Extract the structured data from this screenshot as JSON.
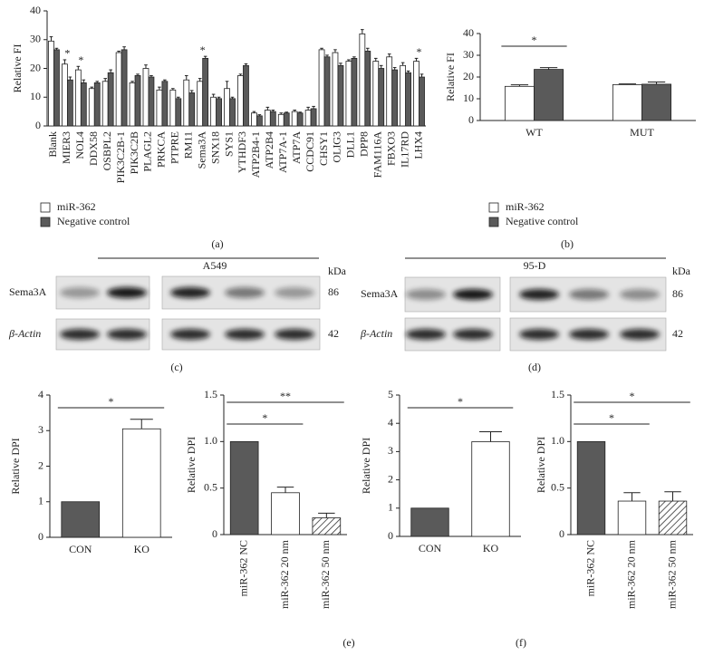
{
  "panel_labels": [
    "(a)",
    "(b)",
    "(c)",
    "(d)",
    "(e)",
    "(f)"
  ],
  "chart_data": [
    {
      "type": "bar",
      "y_label": "Relative FI",
      "categories": [
        "Blank",
        "MIER3",
        "NOL4",
        "DDX58",
        "OSBPL2",
        "PIK3C2B-1",
        "PIK3C2B",
        "PLAGL2",
        "PRKCA",
        "PTPRE",
        "RM11",
        "Sema3A",
        "SNX18",
        "SYS1",
        "YTHDF3",
        "ATP2B4-1",
        "ATP2B4",
        "ATP7A-1",
        "ATP7A",
        "CCDC91",
        "CHSY1",
        "OLIG3",
        "DLL1",
        "DPP8",
        "FAM116A",
        "FBXO3",
        "IL17RD",
        "LHX4"
      ],
      "series": [
        {
          "name": "miR-362",
          "color": "#ffffff",
          "values": [
            29.5,
            21.5,
            19.5,
            13,
            15.5,
            25.5,
            15,
            20,
            12.5,
            12.5,
            16,
            15.5,
            10,
            13,
            17.5,
            4.5,
            5.5,
            4,
            5,
            5.5,
            26.5,
            25.5,
            22.5,
            32,
            22.5,
            24,
            21,
            22.5
          ],
          "errors": [
            1.5,
            1.5,
            1.2,
            0.5,
            1,
            0.5,
            0.5,
            1.2,
            1,
            0.5,
            1.5,
            1,
            1,
            2.5,
            0.5,
            0.5,
            1,
            0.5,
            0.5,
            1,
            0.5,
            1,
            0.5,
            1.5,
            1,
            1,
            1,
            1
          ]
        },
        {
          "name": "Negative control",
          "color": "#5a5a5a",
          "values": [
            26.5,
            16,
            15,
            15,
            18.5,
            26.5,
            17.5,
            17,
            15.5,
            9.5,
            11.5,
            23.5,
            9.5,
            9.5,
            21,
            3.5,
            5,
            4.5,
            4.5,
            6,
            24,
            21,
            23.5,
            26,
            20,
            19.5,
            18.5,
            17
          ],
          "errors": [
            0.5,
            1,
            1,
            0.5,
            1,
            1,
            0.5,
            0.5,
            0.5,
            0.5,
            0.8,
            0.7,
            0.5,
            0.5,
            0.6,
            0.4,
            0.5,
            0.3,
            0.3,
            0.8,
            0.6,
            0.8,
            0.5,
            1,
            1,
            0.8,
            0.6,
            1
          ]
        }
      ],
      "ylim": [
        0,
        40
      ],
      "yticks": [
        0,
        10,
        20,
        30,
        40
      ],
      "annotations": [
        {
          "text": "*",
          "category": "MIER3"
        },
        {
          "text": "*",
          "category": "NOL4"
        },
        {
          "text": "*",
          "category": "Sema3A"
        },
        {
          "text": "*",
          "category": "LHX4"
        }
      ]
    },
    {
      "type": "bar",
      "y_label": "Relative FI",
      "categories": [
        "WT",
        "MUT"
      ],
      "series": [
        {
          "name": "miR-362",
          "color": "#ffffff",
          "values": [
            15.7,
            16.5
          ],
          "errors": [
            0.7,
            0.3
          ]
        },
        {
          "name": "Negative control",
          "color": "#5a5a5a",
          "values": [
            23.5,
            16.7
          ],
          "errors": [
            0.8,
            1
          ]
        }
      ],
      "ylim": [
        0,
        40
      ],
      "yticks": [
        0,
        10,
        20,
        30,
        40
      ],
      "annotations": [
        {
          "text": "*",
          "from": "WT",
          "to": "WT"
        }
      ]
    },
    {
      "type": "bar",
      "y_label": "Relative DPI",
      "categories": [
        "CON",
        "KO"
      ],
      "values": [
        1,
        3.05
      ],
      "errors": [
        null,
        0.27
      ],
      "colors": [
        "#5a5a5a",
        "#ffffff"
      ],
      "hatched": [
        false,
        false
      ],
      "ylim": [
        0,
        4
      ],
      "yticks": [
        0,
        1,
        2,
        3,
        4
      ],
      "annotations": [
        {
          "text": "*",
          "from": "CON",
          "to": "KO"
        }
      ]
    },
    {
      "type": "bar",
      "y_label": "Relative DPI",
      "categories": [
        "miR-362 NC",
        "miR-362 20 nm",
        "miR-362 50 nm"
      ],
      "values": [
        1,
        0.45,
        0.18
      ],
      "errors": [
        null,
        0.06,
        0.05
      ],
      "colors": [
        "#5a5a5a",
        "#ffffff",
        "#ffffff"
      ],
      "hatched": [
        false,
        false,
        true
      ],
      "ylim": [
        0,
        1.5
      ],
      "yticks": [
        0,
        0.5,
        {
          "value": 1,
          "label": "1.0"
        },
        1.5
      ],
      "annotations": [
        {
          "text": "*",
          "from": "miR-362 NC",
          "to": "miR-362 20 nm"
        },
        {
          "text": "**",
          "from": "miR-362 NC",
          "to": "miR-362 50 nm"
        }
      ]
    },
    {
      "type": "bar",
      "y_label": "Relative DPI",
      "categories": [
        "CON",
        "KO"
      ],
      "values": [
        1,
        3.35
      ],
      "errors": [
        null,
        0.35
      ],
      "colors": [
        "#5a5a5a",
        "#ffffff"
      ],
      "hatched": [
        false,
        false
      ],
      "ylim": [
        0,
        5
      ],
      "yticks": [
        0,
        1,
        2,
        3,
        4,
        5
      ],
      "annotations": [
        {
          "text": "*",
          "from": "CON",
          "to": "KO"
        }
      ]
    },
    {
      "type": "bar",
      "y_label": "Relative DPI",
      "categories": [
        "miR-362 NC",
        "miR-362 20 nm",
        "miR-362 50 nm"
      ],
      "values": [
        1,
        0.36,
        0.36
      ],
      "errors": [
        null,
        0.09,
        0.1
      ],
      "colors": [
        "#5a5a5a",
        "#ffffff",
        "#ffffff"
      ],
      "hatched": [
        false,
        false,
        true
      ],
      "ylim": [
        0,
        1.5
      ],
      "yticks": [
        0,
        0.5,
        {
          "value": 1,
          "label": "1.0"
        },
        1.5
      ],
      "annotations": [
        {
          "text": "*",
          "from": "miR-362 NC",
          "to": "miR-362 20 nm"
        },
        {
          "text": "*",
          "from": "miR-362 NC",
          "to": "miR-362 50 nm"
        }
      ]
    }
  ],
  "blots": [
    {
      "cell_line": "A549",
      "unit": "kDa",
      "rows": [
        {
          "protein": "Sema3A",
          "weight": 86
        },
        {
          "protein": "β-Actin",
          "weight": 42
        }
      ]
    },
    {
      "cell_line": "95-D",
      "unit": "kDa",
      "rows": [
        {
          "protein": "Sema3A",
          "weight": 86
        },
        {
          "protein": "β-Actin",
          "weight": 42
        }
      ]
    }
  ]
}
